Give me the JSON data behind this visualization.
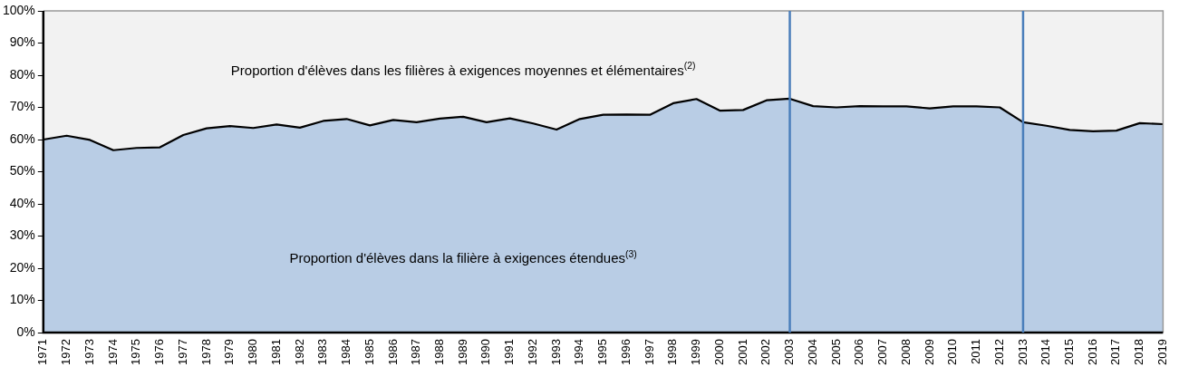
{
  "chart_data": {
    "type": "area",
    "stacked": true,
    "categories": [
      "1971",
      "1972",
      "1973",
      "1974",
      "1975",
      "1976",
      "1977",
      "1978",
      "1979",
      "1980",
      "1981",
      "1982",
      "1983",
      "1984",
      "1985",
      "1986",
      "1987",
      "1988",
      "1989",
      "1990",
      "1991",
      "1992",
      "1993",
      "1994",
      "1995",
      "1996",
      "1997",
      "1998",
      "1999",
      "2000",
      "2001",
      "2002",
      "2003",
      "2004",
      "2005",
      "2006",
      "2007",
      "2008",
      "2009",
      "2010",
      "2011",
      "2012",
      "2013",
      "2014",
      "2015",
      "2016",
      "2017",
      "2018",
      "2019"
    ],
    "series": [
      {
        "name": "Proportion d'élèves dans la filière à exigences étendues$^{(3)}$",
        "color": "#b9cde5",
        "values": [
          60,
          61.2,
          59.9,
          56.7,
          57.4,
          57.6,
          61.4,
          63.5,
          64.2,
          63.6,
          64.7,
          63.7,
          65.8,
          66.4,
          64.4,
          66.1,
          65.4,
          66.5,
          67.1,
          65.4,
          66.6,
          65,
          63.1,
          66.4,
          67.7,
          67.8,
          67.7,
          71.3,
          72.6,
          69,
          69.2,
          72.2,
          72.7,
          70.4,
          70,
          70.4,
          70.3,
          70.3,
          69.7,
          70.3,
          70.3,
          70,
          65.4,
          64.3,
          63,
          62.6,
          62.8,
          65.1,
          64.8
        ]
      },
      {
        "name": "Proportion d'élèves dans les filières à exigences moyennes et élémentaires$^{(2)}$",
        "color": "#f2f2f2",
        "values": [
          40,
          38.8,
          40.1,
          43.3,
          42.6,
          42.4,
          38.6,
          36.5,
          35.8,
          36.4,
          35.3,
          36.3,
          34.2,
          33.6,
          35.6,
          33.9,
          34.6,
          33.5,
          32.9,
          34.6,
          33.4,
          35,
          36.9,
          33.6,
          32.3,
          32.2,
          32.3,
          28.7,
          27.4,
          31,
          30.8,
          27.8,
          27.3,
          29.6,
          30,
          29.6,
          29.7,
          29.7,
          30.3,
          29.7,
          29.7,
          30,
          34.6,
          35.7,
          37,
          37.4,
          37.2,
          34.9,
          35.2
        ]
      }
    ],
    "ylim": [
      0,
      100
    ],
    "yticks": [
      {
        "value": 0,
        "label": "0%"
      },
      {
        "value": 10,
        "label": "10%"
      },
      {
        "value": 20,
        "label": "20%"
      },
      {
        "value": 30,
        "label": "30%"
      },
      {
        "value": 40,
        "label": "40%"
      },
      {
        "value": 50,
        "label": "50%"
      },
      {
        "value": 60,
        "label": "60%"
      },
      {
        "value": 70,
        "label": "70%"
      },
      {
        "value": 80,
        "label": "80%"
      },
      {
        "value": 90,
        "label": "90%"
      },
      {
        "value": 100,
        "label": "100%"
      }
    ],
    "ref_lines": [
      {
        "axis": "x",
        "value": "2003",
        "color": "#4a7ebb"
      },
      {
        "axis": "x",
        "value": "2013",
        "color": "#4a7ebb"
      }
    ],
    "grid": false,
    "legend": false
  }
}
